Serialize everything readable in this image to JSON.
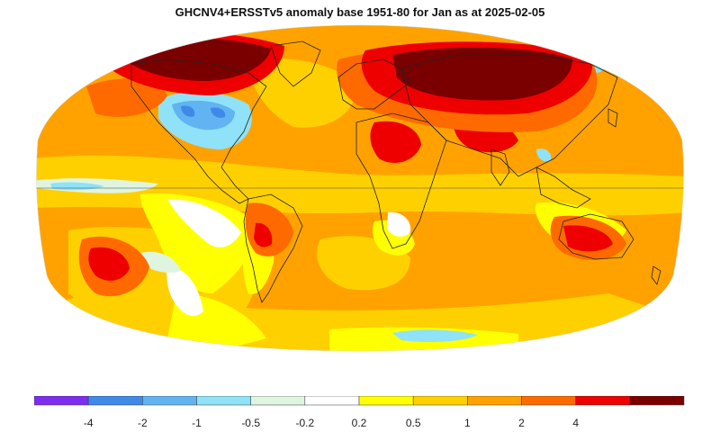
{
  "title": "GHCNV4+ERSSTv5 anomaly base 1951-80 for Jan as at 2025-02-05",
  "legend": {
    "colors": [
      "#7d2df0",
      "#3f8ae8",
      "#62b3f2",
      "#8fe2f7",
      "#dff5df",
      "#ffffff",
      "#ffff00",
      "#ffd000",
      "#ffa200",
      "#ff6a00",
      "#ee0000",
      "#7a0000"
    ],
    "tick_labels": [
      "-4",
      "-2",
      "-1",
      "-0.5",
      "-0.2",
      "0.2",
      "0.5",
      "1",
      "2",
      "4"
    ]
  },
  "palette": {
    "base_orange": "#ffa200",
    "light_orange": "#ffd000",
    "yellow": "#ffff00",
    "white": "#ffffff",
    "pale_green": "#dff5df",
    "cyan": "#8fe2f7",
    "light_blue": "#62b3f2",
    "blue": "#3f8ae8",
    "dark_orange": "#ff6a00",
    "red": "#ee0000",
    "dark_red": "#7a0000"
  }
}
